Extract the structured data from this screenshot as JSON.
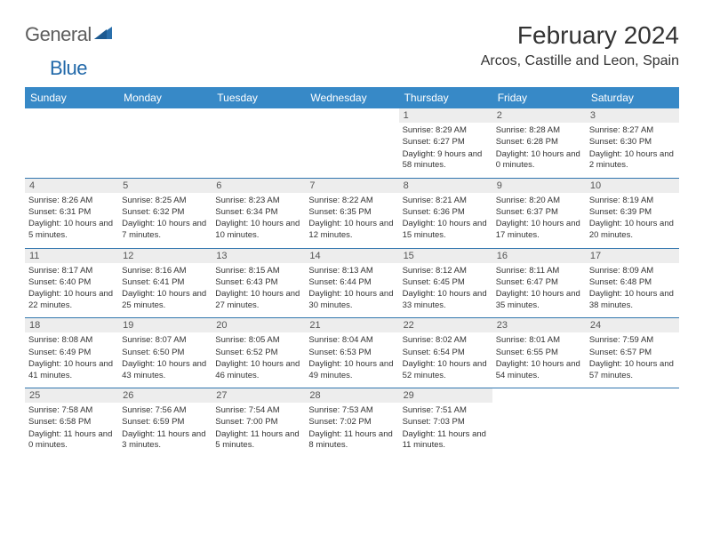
{
  "brand": {
    "word1": "General",
    "word2": "Blue"
  },
  "title": "February 2024",
  "location": "Arcos, Castille and Leon, Spain",
  "colors": {
    "header_bg": "#3789c7",
    "header_text": "#ffffff",
    "separator": "#3176ae",
    "daynum_bg": "#ededed",
    "daynum_text": "#555555",
    "body_text": "#333333",
    "brand_gray": "#5d5d5d",
    "brand_blue": "#2168a9",
    "page_bg": "#ffffff"
  },
  "day_names": [
    "Sunday",
    "Monday",
    "Tuesday",
    "Wednesday",
    "Thursday",
    "Friday",
    "Saturday"
  ],
  "weeks": [
    [
      null,
      null,
      null,
      null,
      {
        "n": "1",
        "sr": "8:29 AM",
        "ss": "6:27 PM",
        "dl": "9 hours and 58 minutes."
      },
      {
        "n": "2",
        "sr": "8:28 AM",
        "ss": "6:28 PM",
        "dl": "10 hours and 0 minutes."
      },
      {
        "n": "3",
        "sr": "8:27 AM",
        "ss": "6:30 PM",
        "dl": "10 hours and 2 minutes."
      }
    ],
    [
      {
        "n": "4",
        "sr": "8:26 AM",
        "ss": "6:31 PM",
        "dl": "10 hours and 5 minutes."
      },
      {
        "n": "5",
        "sr": "8:25 AM",
        "ss": "6:32 PM",
        "dl": "10 hours and 7 minutes."
      },
      {
        "n": "6",
        "sr": "8:23 AM",
        "ss": "6:34 PM",
        "dl": "10 hours and 10 minutes."
      },
      {
        "n": "7",
        "sr": "8:22 AM",
        "ss": "6:35 PM",
        "dl": "10 hours and 12 minutes."
      },
      {
        "n": "8",
        "sr": "8:21 AM",
        "ss": "6:36 PM",
        "dl": "10 hours and 15 minutes."
      },
      {
        "n": "9",
        "sr": "8:20 AM",
        "ss": "6:37 PM",
        "dl": "10 hours and 17 minutes."
      },
      {
        "n": "10",
        "sr": "8:19 AM",
        "ss": "6:39 PM",
        "dl": "10 hours and 20 minutes."
      }
    ],
    [
      {
        "n": "11",
        "sr": "8:17 AM",
        "ss": "6:40 PM",
        "dl": "10 hours and 22 minutes."
      },
      {
        "n": "12",
        "sr": "8:16 AM",
        "ss": "6:41 PM",
        "dl": "10 hours and 25 minutes."
      },
      {
        "n": "13",
        "sr": "8:15 AM",
        "ss": "6:43 PM",
        "dl": "10 hours and 27 minutes."
      },
      {
        "n": "14",
        "sr": "8:13 AM",
        "ss": "6:44 PM",
        "dl": "10 hours and 30 minutes."
      },
      {
        "n": "15",
        "sr": "8:12 AM",
        "ss": "6:45 PM",
        "dl": "10 hours and 33 minutes."
      },
      {
        "n": "16",
        "sr": "8:11 AM",
        "ss": "6:47 PM",
        "dl": "10 hours and 35 minutes."
      },
      {
        "n": "17",
        "sr": "8:09 AM",
        "ss": "6:48 PM",
        "dl": "10 hours and 38 minutes."
      }
    ],
    [
      {
        "n": "18",
        "sr": "8:08 AM",
        "ss": "6:49 PM",
        "dl": "10 hours and 41 minutes."
      },
      {
        "n": "19",
        "sr": "8:07 AM",
        "ss": "6:50 PM",
        "dl": "10 hours and 43 minutes."
      },
      {
        "n": "20",
        "sr": "8:05 AM",
        "ss": "6:52 PM",
        "dl": "10 hours and 46 minutes."
      },
      {
        "n": "21",
        "sr": "8:04 AM",
        "ss": "6:53 PM",
        "dl": "10 hours and 49 minutes."
      },
      {
        "n": "22",
        "sr": "8:02 AM",
        "ss": "6:54 PM",
        "dl": "10 hours and 52 minutes."
      },
      {
        "n": "23",
        "sr": "8:01 AM",
        "ss": "6:55 PM",
        "dl": "10 hours and 54 minutes."
      },
      {
        "n": "24",
        "sr": "7:59 AM",
        "ss": "6:57 PM",
        "dl": "10 hours and 57 minutes."
      }
    ],
    [
      {
        "n": "25",
        "sr": "7:58 AM",
        "ss": "6:58 PM",
        "dl": "11 hours and 0 minutes."
      },
      {
        "n": "26",
        "sr": "7:56 AM",
        "ss": "6:59 PM",
        "dl": "11 hours and 3 minutes."
      },
      {
        "n": "27",
        "sr": "7:54 AM",
        "ss": "7:00 PM",
        "dl": "11 hours and 5 minutes."
      },
      {
        "n": "28",
        "sr": "7:53 AM",
        "ss": "7:02 PM",
        "dl": "11 hours and 8 minutes."
      },
      {
        "n": "29",
        "sr": "7:51 AM",
        "ss": "7:03 PM",
        "dl": "11 hours and 11 minutes."
      },
      null,
      null
    ]
  ],
  "labels": {
    "sunrise": "Sunrise:",
    "sunset": "Sunset:",
    "daylight": "Daylight:"
  }
}
